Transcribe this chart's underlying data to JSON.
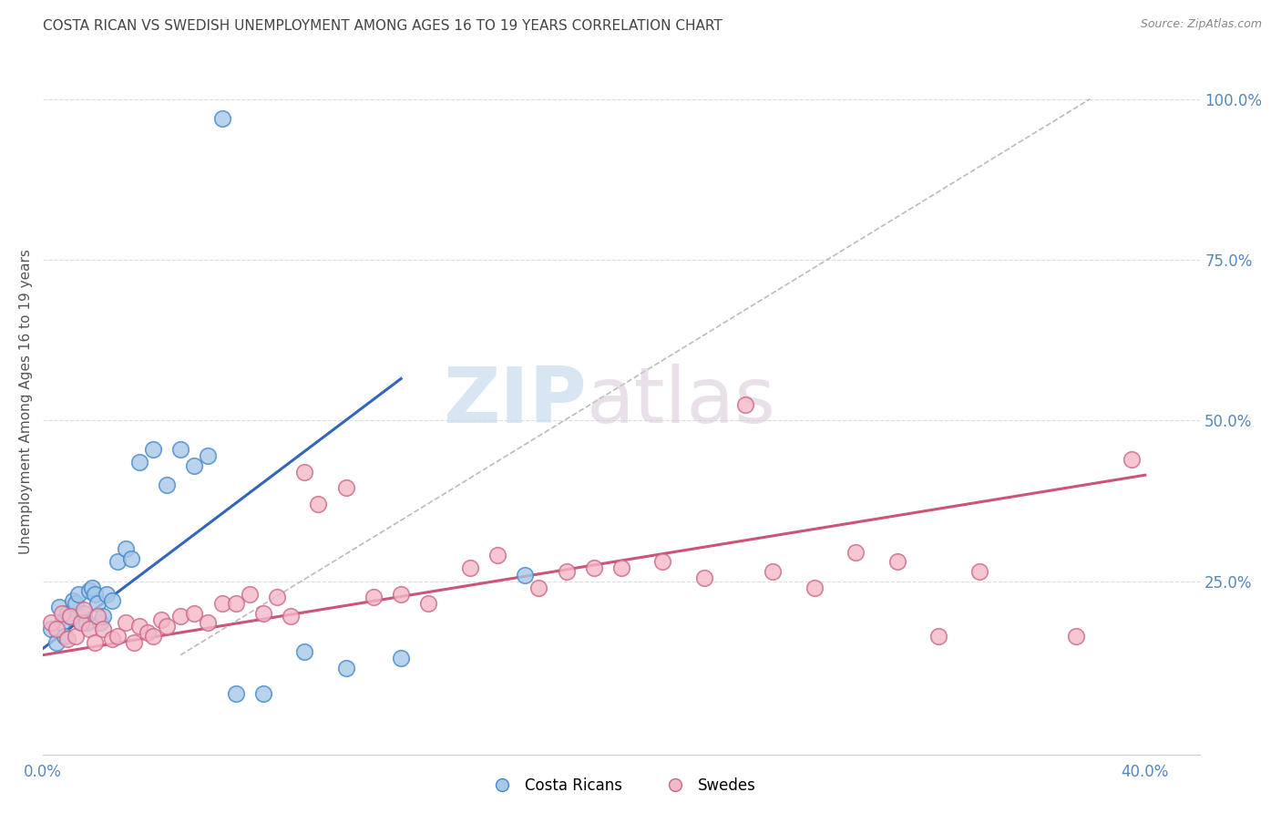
{
  "title": "COSTA RICAN VS SWEDISH UNEMPLOYMENT AMONG AGES 16 TO 19 YEARS CORRELATION CHART",
  "source": "Source: ZipAtlas.com",
  "ylabel": "Unemployment Among Ages 16 to 19 years",
  "xlim": [
    0.0,
    0.42
  ],
  "ylim": [
    -0.02,
    1.08
  ],
  "ytick_right_labels": [
    "100.0%",
    "75.0%",
    "50.0%",
    "25.0%"
  ],
  "ytick_right_vals": [
    1.0,
    0.75,
    0.5,
    0.25
  ],
  "legend_label_blue": "Costa Ricans",
  "legend_label_pink": "Swedes",
  "watermark_zip": "ZIP",
  "watermark_atlas": "atlas",
  "blue_scatter_color": "#a8c8e8",
  "blue_edge_color": "#4488cc",
  "blue_line_color": "#3366bb",
  "pink_scatter_color": "#f4b8c8",
  "pink_edge_color": "#cc6688",
  "pink_line_color": "#cc5577",
  "grid_color": "#dddddd",
  "title_color": "#444444",
  "blue_scatter_x": [
    0.003,
    0.005,
    0.006,
    0.007,
    0.008,
    0.009,
    0.01,
    0.011,
    0.012,
    0.013,
    0.014,
    0.015,
    0.016,
    0.017,
    0.018,
    0.019,
    0.02,
    0.021,
    0.022,
    0.023,
    0.025,
    0.027,
    0.03,
    0.032,
    0.035,
    0.04,
    0.045,
    0.05,
    0.055,
    0.06,
    0.07,
    0.08,
    0.095,
    0.11,
    0.13,
    0.065,
    0.175
  ],
  "blue_scatter_y": [
    0.175,
    0.155,
    0.21,
    0.185,
    0.165,
    0.2,
    0.195,
    0.22,
    0.215,
    0.23,
    0.185,
    0.2,
    0.185,
    0.235,
    0.24,
    0.23,
    0.215,
    0.185,
    0.195,
    0.23,
    0.22,
    0.28,
    0.3,
    0.285,
    0.435,
    0.455,
    0.4,
    0.455,
    0.43,
    0.445,
    0.075,
    0.075,
    0.14,
    0.115,
    0.13,
    0.97,
    0.26
  ],
  "pink_scatter_x": [
    0.003,
    0.005,
    0.007,
    0.009,
    0.01,
    0.012,
    0.014,
    0.015,
    0.017,
    0.019,
    0.02,
    0.022,
    0.025,
    0.027,
    0.03,
    0.033,
    0.035,
    0.038,
    0.04,
    0.043,
    0.045,
    0.05,
    0.055,
    0.06,
    0.065,
    0.07,
    0.075,
    0.08,
    0.085,
    0.09,
    0.095,
    0.1,
    0.11,
    0.12,
    0.13,
    0.14,
    0.155,
    0.165,
    0.18,
    0.19,
    0.2,
    0.21,
    0.225,
    0.24,
    0.255,
    0.265,
    0.28,
    0.295,
    0.31,
    0.325,
    0.34,
    0.375,
    0.395
  ],
  "pink_scatter_y": [
    0.185,
    0.175,
    0.2,
    0.16,
    0.195,
    0.165,
    0.185,
    0.205,
    0.175,
    0.155,
    0.195,
    0.175,
    0.16,
    0.165,
    0.185,
    0.155,
    0.18,
    0.17,
    0.165,
    0.19,
    0.18,
    0.195,
    0.2,
    0.185,
    0.215,
    0.215,
    0.23,
    0.2,
    0.225,
    0.195,
    0.42,
    0.37,
    0.395,
    0.225,
    0.23,
    0.215,
    0.27,
    0.29,
    0.24,
    0.265,
    0.27,
    0.27,
    0.28,
    0.255,
    0.525,
    0.265,
    0.24,
    0.295,
    0.28,
    0.165,
    0.265,
    0.165,
    0.44
  ],
  "blue_line_x": [
    0.0,
    0.13
  ],
  "blue_line_y": [
    0.145,
    0.565
  ],
  "pink_line_x": [
    0.0,
    0.4
  ],
  "pink_line_y": [
    0.135,
    0.415
  ],
  "diag_line_x": [
    0.05,
    0.38
  ],
  "diag_line_y": [
    0.135,
    1.0
  ]
}
